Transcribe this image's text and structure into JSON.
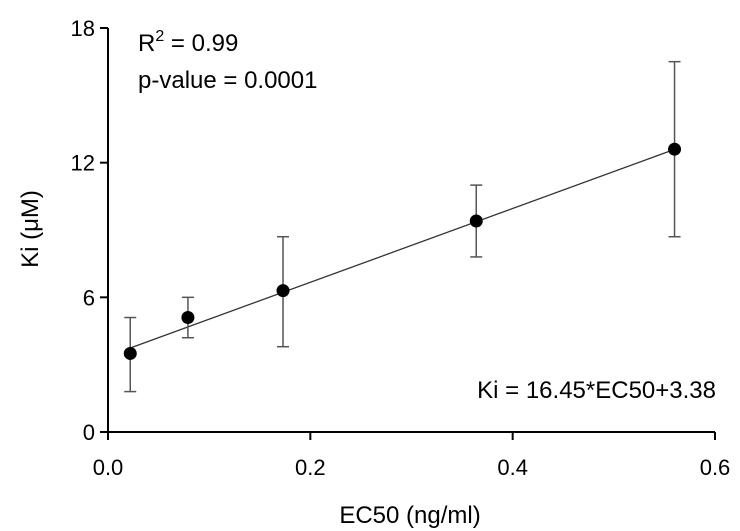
{
  "chart_data": {
    "type": "scatter",
    "title": "",
    "xlabel": "EC50 (ng/ml)",
    "ylabel": "Ki (μM)",
    "xlim": [
      0,
      0.6
    ],
    "ylim": [
      0,
      18
    ],
    "x_ticks": [
      0.0,
      0.2,
      0.4,
      0.6
    ],
    "x_tick_labels": [
      "0.0",
      "0.2",
      "0.4",
      "0.6"
    ],
    "y_ticks": [
      0,
      6,
      12,
      18
    ],
    "y_tick_labels": [
      "0",
      "6",
      "12",
      "18"
    ],
    "grid": false,
    "legend": "none",
    "points": [
      {
        "x": 0.022,
        "y": 3.5,
        "err_low": 1.8,
        "err_high": 5.1
      },
      {
        "x": 0.079,
        "y": 5.1,
        "err_low": 4.2,
        "err_high": 6.0
      },
      {
        "x": 0.173,
        "y": 6.3,
        "err_low": 3.8,
        "err_high": 8.7
      },
      {
        "x": 0.364,
        "y": 9.4,
        "err_low": 7.8,
        "err_high": 11.0
      },
      {
        "x": 0.56,
        "y": 12.6,
        "err_low": 8.7,
        "err_high": 16.5
      }
    ],
    "fit_line": {
      "slope": 16.45,
      "intercept": 3.38,
      "x_range": [
        0.022,
        0.56
      ]
    },
    "annotations": {
      "r2_prefix": "R",
      "r2_sup": "2",
      "r2_value": " = 0.99",
      "p_value": "p-value = 0.0001",
      "equation": "Ki = 16.45*EC50+3.38"
    },
    "colors": {
      "axis": "#000000",
      "marker": "#000000",
      "errorbar": "#555555",
      "fit": "#333333"
    }
  }
}
